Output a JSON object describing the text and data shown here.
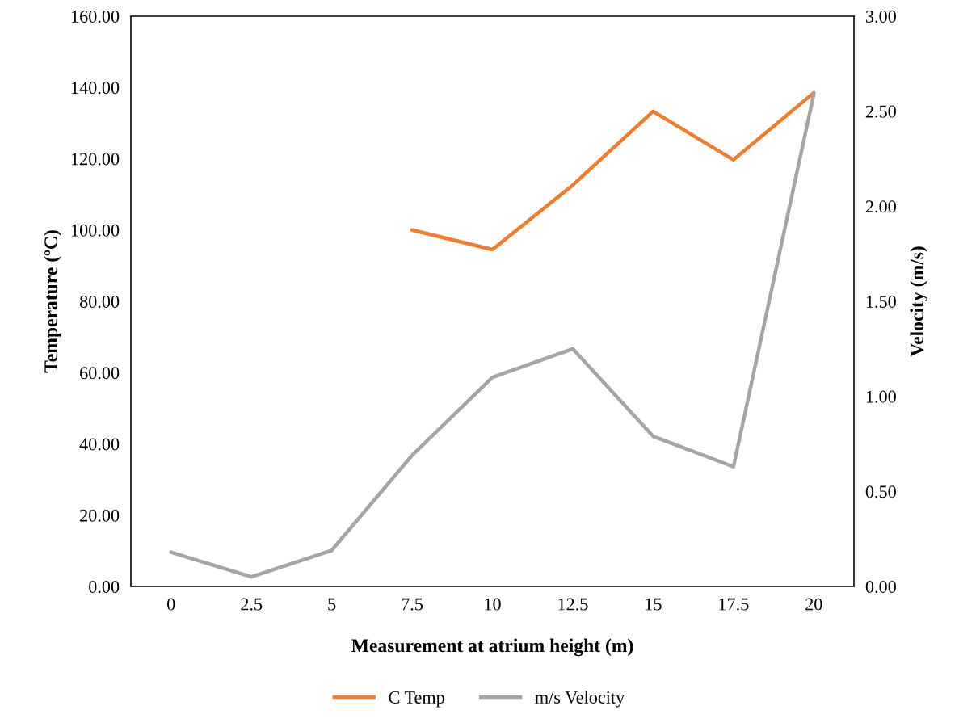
{
  "chart_data": {
    "type": "line",
    "xlabel": "Measurement at atrium height (m)",
    "ylabel": "Temperature (ºC)",
    "y2label": "Velocity (m/s)",
    "categories": [
      "0",
      "2.5",
      "5",
      "7.5",
      "10",
      "12.5",
      "15",
      "17.5",
      "20"
    ],
    "series": [
      {
        "name": "C Temp",
        "color": "#ed7d31",
        "values": [
          null,
          null,
          null,
          100,
          94.5,
          112.6,
          133.3,
          119.7,
          138.5
        ]
      },
      {
        "name": "m/s Velocity",
        "color": "#a5a5a5",
        "axis": "y2",
        "values": [
          0.18,
          0.05,
          0.19,
          0.69,
          1.1,
          1.25,
          0.79,
          0.63,
          2.59
        ]
      }
    ],
    "ylim": [
      0,
      160
    ],
    "yticks": [
      {
        "value": 0,
        "label": "0.00"
      },
      {
        "value": 20,
        "label": "20.00"
      },
      {
        "value": 40,
        "label": "40.00"
      },
      {
        "value": 60,
        "label": "60.00"
      },
      {
        "value": 80,
        "label": "80.00"
      },
      {
        "value": 100,
        "label": "100.00"
      },
      {
        "value": 120,
        "label": "120.00"
      },
      {
        "value": 140,
        "label": "140.00"
      },
      {
        "value": 160,
        "label": "160.00"
      }
    ],
    "y2lim": [
      0,
      3
    ],
    "y2ticks": [
      {
        "value": 0,
        "label": "0.00"
      },
      {
        "value": 0.5,
        "label": "0.50"
      },
      {
        "value": 1,
        "label": "1.00"
      },
      {
        "value": 1.5,
        "label": "1.50"
      },
      {
        "value": 2,
        "label": "2.00"
      },
      {
        "value": 2.5,
        "label": "2.50"
      },
      {
        "value": 3,
        "label": "3.00"
      }
    ],
    "grid": false,
    "legend": "bottom",
    "marker": "none",
    "line_style": "solid"
  }
}
